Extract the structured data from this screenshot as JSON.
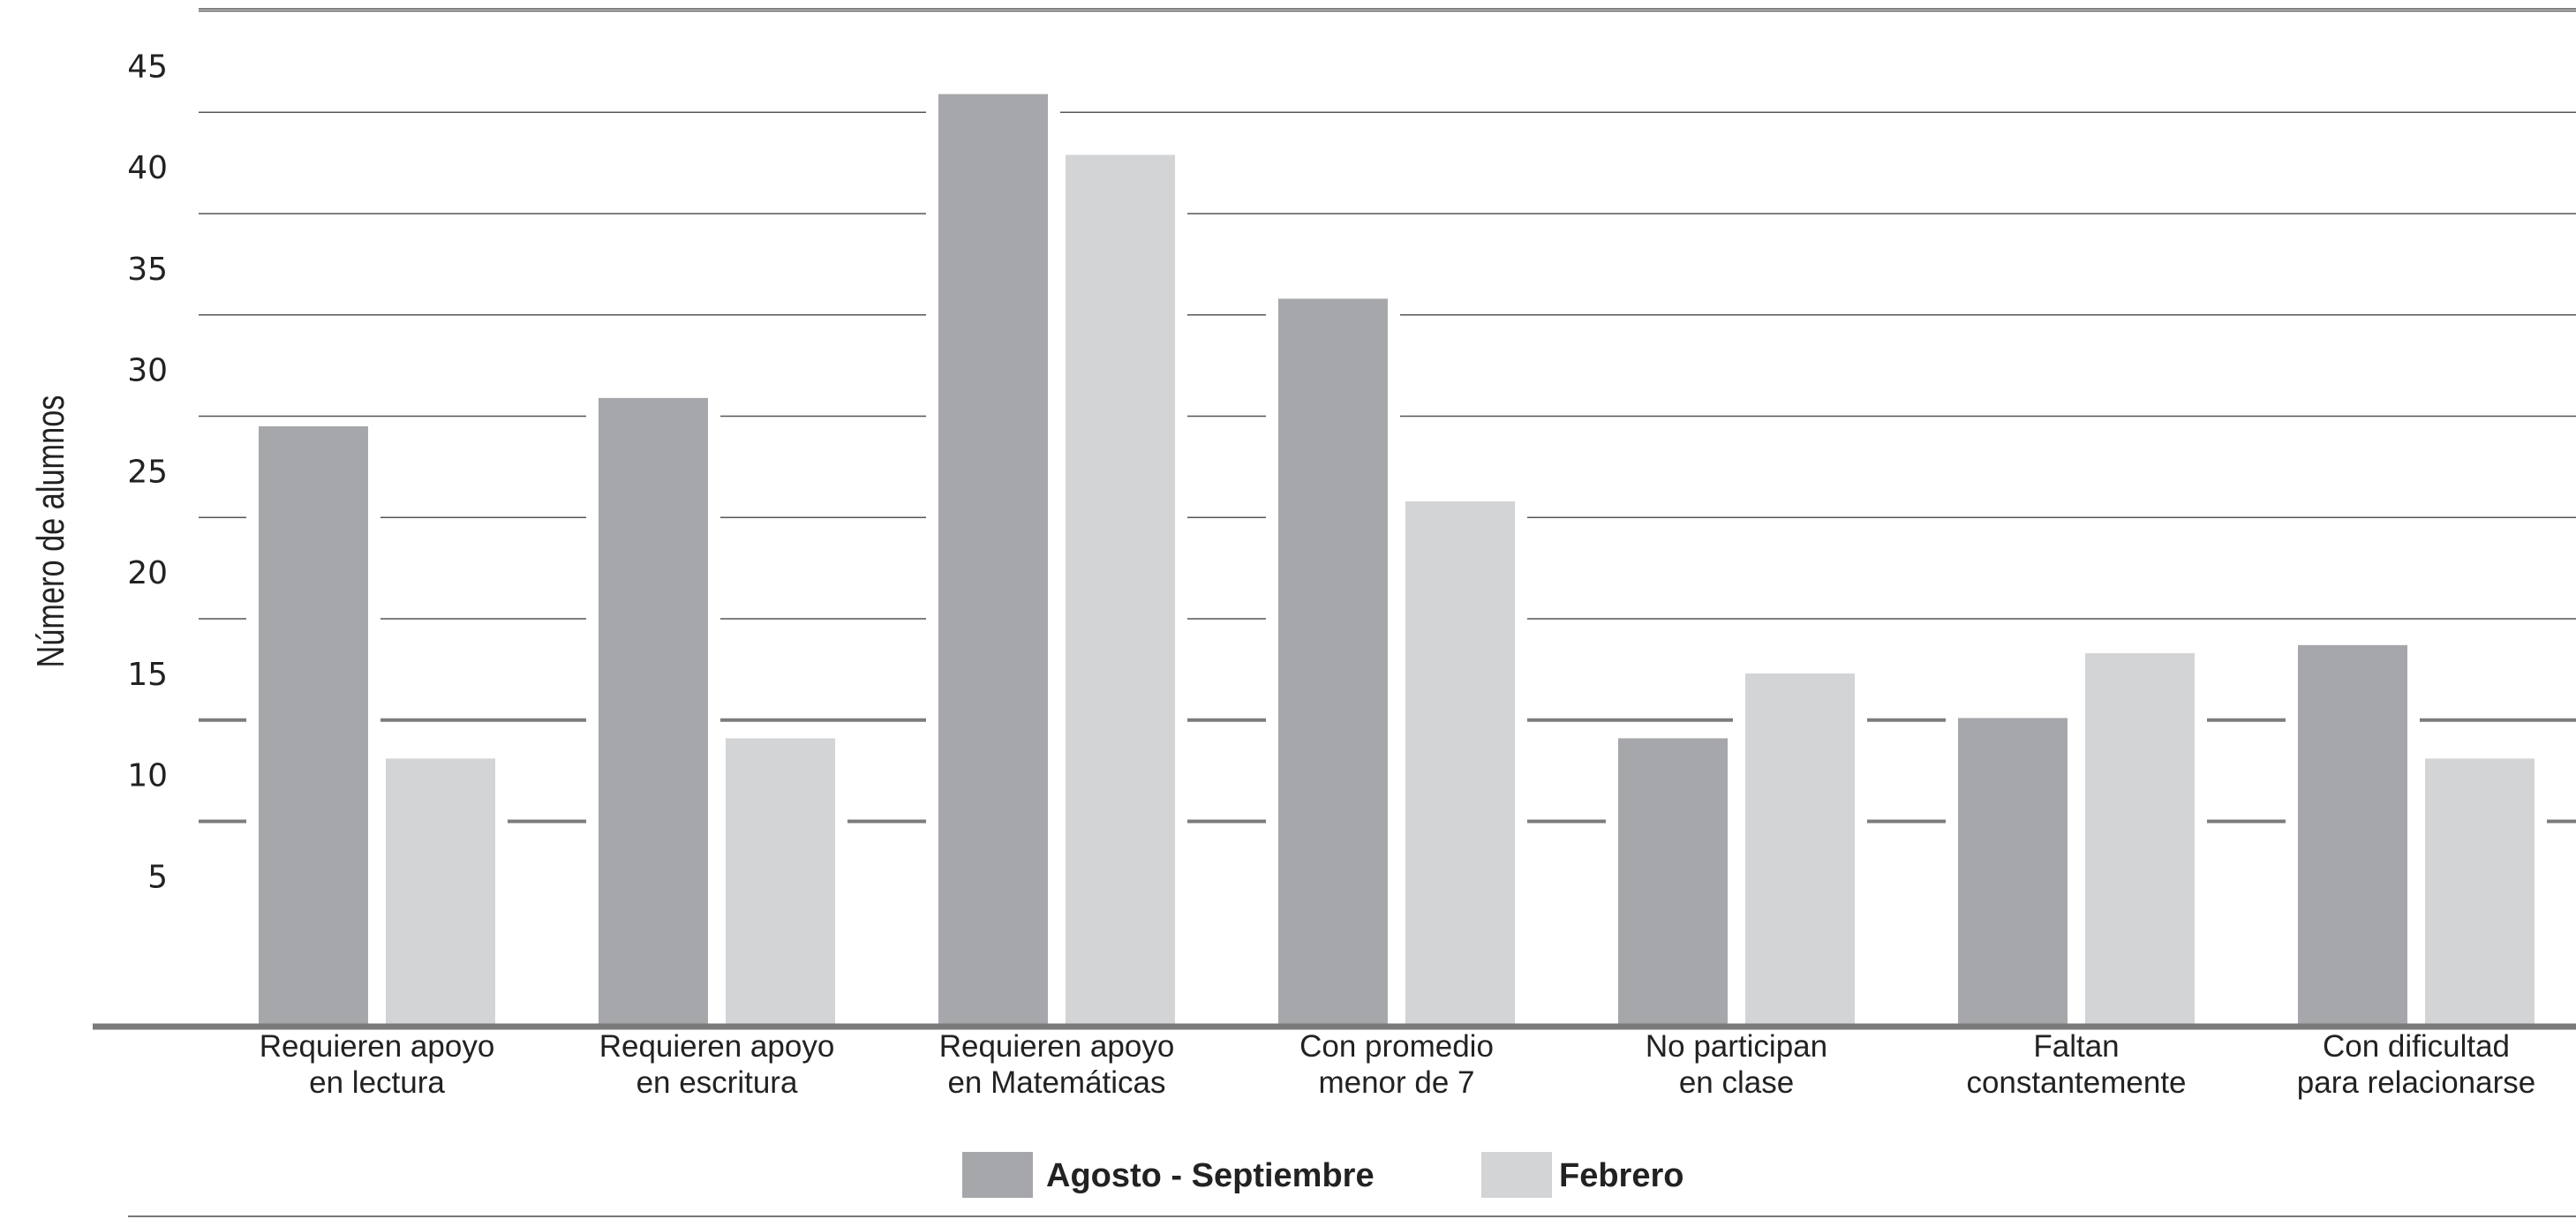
{
  "chart_data": {
    "type": "bar",
    "title": "",
    "xlabel": "",
    "ylabel": "Número de alumnos",
    "ylim": [
      0,
      50
    ],
    "yticks": [
      "5",
      "10",
      "15",
      "20",
      "25",
      "30",
      "35",
      "40",
      "45",
      "50"
    ],
    "grid": "horizontal",
    "legend_position": "bottom-center",
    "categories": [
      [
        "Requieren apoyo",
        "en lectura"
      ],
      [
        "Requieren apoyo",
        "en escritura"
      ],
      [
        "Requieren apoyo",
        "en Matemáticas"
      ],
      [
        "Con promedio",
        "menor de 7"
      ],
      [
        "No participan",
        "en clase"
      ],
      [
        "Faltan",
        "constantemente"
      ],
      [
        "Con dificultad",
        "para relacionarse"
      ]
    ],
    "series": [
      {
        "name": "Agosto - Septiembre",
        "color": "#a6a7aa",
        "values": [
          29.5,
          30.9,
          45.9,
          35.8,
          14.1,
          15.1,
          18.7
        ]
      },
      {
        "name": "Febrero",
        "color": "#d3d4d6",
        "values": [
          13.1,
          14.1,
          42.9,
          25.8,
          17.3,
          18.3,
          13.1
        ]
      }
    ]
  }
}
